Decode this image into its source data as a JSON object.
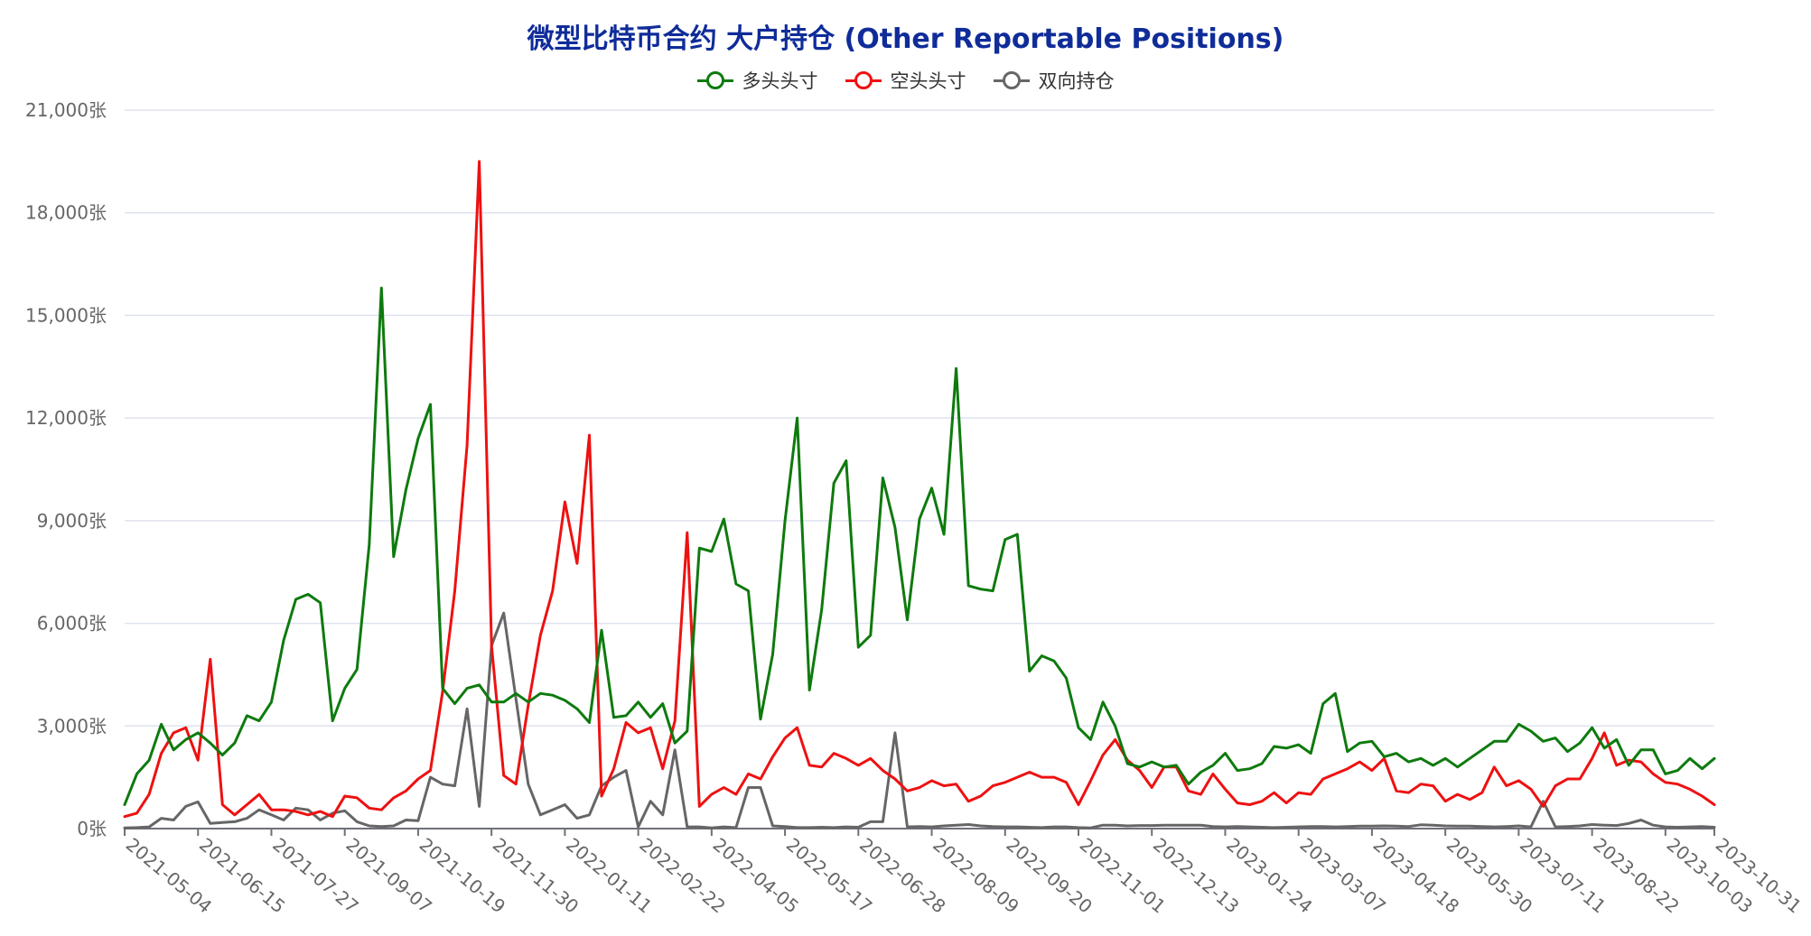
{
  "chart_data": {
    "type": "line",
    "title": "微型比特币合约 大户持仓 (Other Reportable Positions)",
    "ylim": [
      0,
      21000
    ],
    "y_ticks": [
      "0张",
      "3,000张",
      "6,000张",
      "9,000张",
      "12,000张",
      "15,000张",
      "18,000张",
      "21,000张"
    ],
    "y_tick_values": [
      0,
      3000,
      6000,
      9000,
      12000,
      15000,
      18000,
      21000
    ],
    "x_tick_labels": [
      "2021-05-04",
      "2021-06-15",
      "2021-07-27",
      "2021-09-07",
      "2021-10-19",
      "2021-11-30",
      "2022-01-11",
      "2022-02-22",
      "2022-04-05",
      "2022-05-17",
      "2022-06-28",
      "2022-08-09",
      "2022-09-20",
      "2022-11-01",
      "2022-12-13",
      "2023-01-24",
      "2023-03-07",
      "2023-04-18",
      "2023-05-30",
      "2023-07-11",
      "2023-08-22",
      "2023-10-03",
      "2023-10-31"
    ],
    "x_tick_index": [
      0,
      6,
      12,
      18,
      24,
      30,
      36,
      42,
      48,
      54,
      60,
      66,
      72,
      78,
      84,
      90,
      96,
      102,
      108,
      114,
      120,
      126,
      130
    ],
    "point_count": 131,
    "grid": true,
    "legend_position": "top-center",
    "series": [
      {
        "name": "多头头寸",
        "color": "#0e7a0e",
        "values": [
          700,
          1600,
          2000,
          3050,
          2300,
          2600,
          2800,
          2500,
          2150,
          2500,
          3300,
          3150,
          3700,
          5500,
          6700,
          6850,
          6600,
          3150,
          4100,
          4650,
          8300,
          15800,
          7950,
          9900,
          11400,
          12400,
          4100,
          3650,
          4100,
          4200,
          3700,
          3700,
          3950,
          3700,
          3950,
          3900,
          3750,
          3500,
          3100,
          5800,
          3250,
          3300,
          3700,
          3250,
          3650,
          2500,
          2850,
          8200,
          8100,
          9050,
          7150,
          6950,
          3200,
          5100,
          9000,
          12000,
          4050,
          6400,
          10100,
          10750,
          5300,
          5650,
          10250,
          8800,
          6100,
          9050,
          9950,
          8600,
          13450,
          7100,
          7000,
          6950,
          8450,
          8600,
          4600,
          5050,
          4900,
          4400,
          2950,
          2600,
          3700,
          3000,
          1900,
          1800,
          1950,
          1800,
          1850,
          1300,
          1650,
          1850,
          2200,
          1700,
          1750,
          1900,
          2400,
          2350,
          2450,
          2200,
          3650,
          3950,
          2250,
          2500,
          2550,
          2100,
          2200,
          1950,
          2050,
          1850,
          2050,
          1800,
          2050,
          2300,
          2550,
          2550,
          3050,
          2850,
          2550,
          2650,
          2250,
          2500,
          2950,
          2350,
          2600,
          1850,
          2300,
          2300,
          1600,
          1700,
          2050,
          1750,
          2050
        ]
      },
      {
        "name": "空头头寸",
        "color": "#ee1111",
        "values": [
          350,
          450,
          1000,
          2200,
          2800,
          2950,
          2000,
          4950,
          700,
          400,
          700,
          1000,
          550,
          550,
          500,
          400,
          500,
          350,
          950,
          900,
          600,
          550,
          900,
          1100,
          1450,
          1700,
          4000,
          6950,
          11200,
          19500,
          5350,
          1550,
          1300,
          3600,
          5650,
          6950,
          9550,
          7750,
          11500,
          950,
          1750,
          3100,
          2800,
          2950,
          1750,
          3150,
          8650,
          650,
          1000,
          1200,
          1000,
          1600,
          1450,
          2100,
          2650,
          2950,
          1850,
          1800,
          2200,
          2050,
          1850,
          2050,
          1700,
          1450,
          1100,
          1200,
          1400,
          1250,
          1300,
          800,
          950,
          1250,
          1350,
          1500,
          1650,
          1500,
          1500,
          1350,
          700,
          1400,
          2150,
          2600,
          2000,
          1700,
          1200,
          1800,
          1800,
          1100,
          1000,
          1600,
          1150,
          750,
          700,
          800,
          1050,
          750,
          1050,
          1000,
          1450,
          1600,
          1750,
          1950,
          1700,
          2050,
          1100,
          1050,
          1300,
          1250,
          800,
          1000,
          850,
          1050,
          1800,
          1250,
          1400,
          1150,
          650,
          1250,
          1450,
          1450,
          2050,
          2800,
          1850,
          2000,
          1950,
          1600,
          1350,
          1300,
          1150,
          950,
          700
        ]
      },
      {
        "name": "双向持仓",
        "color": "#666666",
        "values": [
          20,
          30,
          50,
          300,
          250,
          650,
          780,
          150,
          180,
          200,
          300,
          550,
          400,
          250,
          600,
          550,
          250,
          450,
          520,
          200,
          80,
          60,
          80,
          250,
          230,
          1500,
          1300,
          1250,
          3500,
          650,
          5350,
          6300,
          3800,
          1300,
          400,
          550,
          700,
          300,
          400,
          1250,
          1500,
          1700,
          50,
          800,
          400,
          2300,
          50,
          50,
          20,
          50,
          30,
          1200,
          1200,
          80,
          60,
          30,
          30,
          40,
          30,
          50,
          40,
          200,
          200,
          2800,
          50,
          60,
          50,
          80,
          100,
          120,
          80,
          60,
          50,
          50,
          40,
          30,
          50,
          50,
          30,
          20,
          100,
          100,
          80,
          90,
          90,
          100,
          100,
          100,
          100,
          60,
          50,
          60,
          50,
          40,
          30,
          40,
          50,
          60,
          60,
          50,
          60,
          70,
          70,
          80,
          70,
          60,
          110,
          100,
          80,
          70,
          70,
          60,
          50,
          60,
          80,
          50,
          800,
          50,
          60,
          80,
          120,
          100,
          90,
          150,
          250,
          100,
          50,
          40,
          50,
          60,
          40
        ]
      }
    ]
  }
}
